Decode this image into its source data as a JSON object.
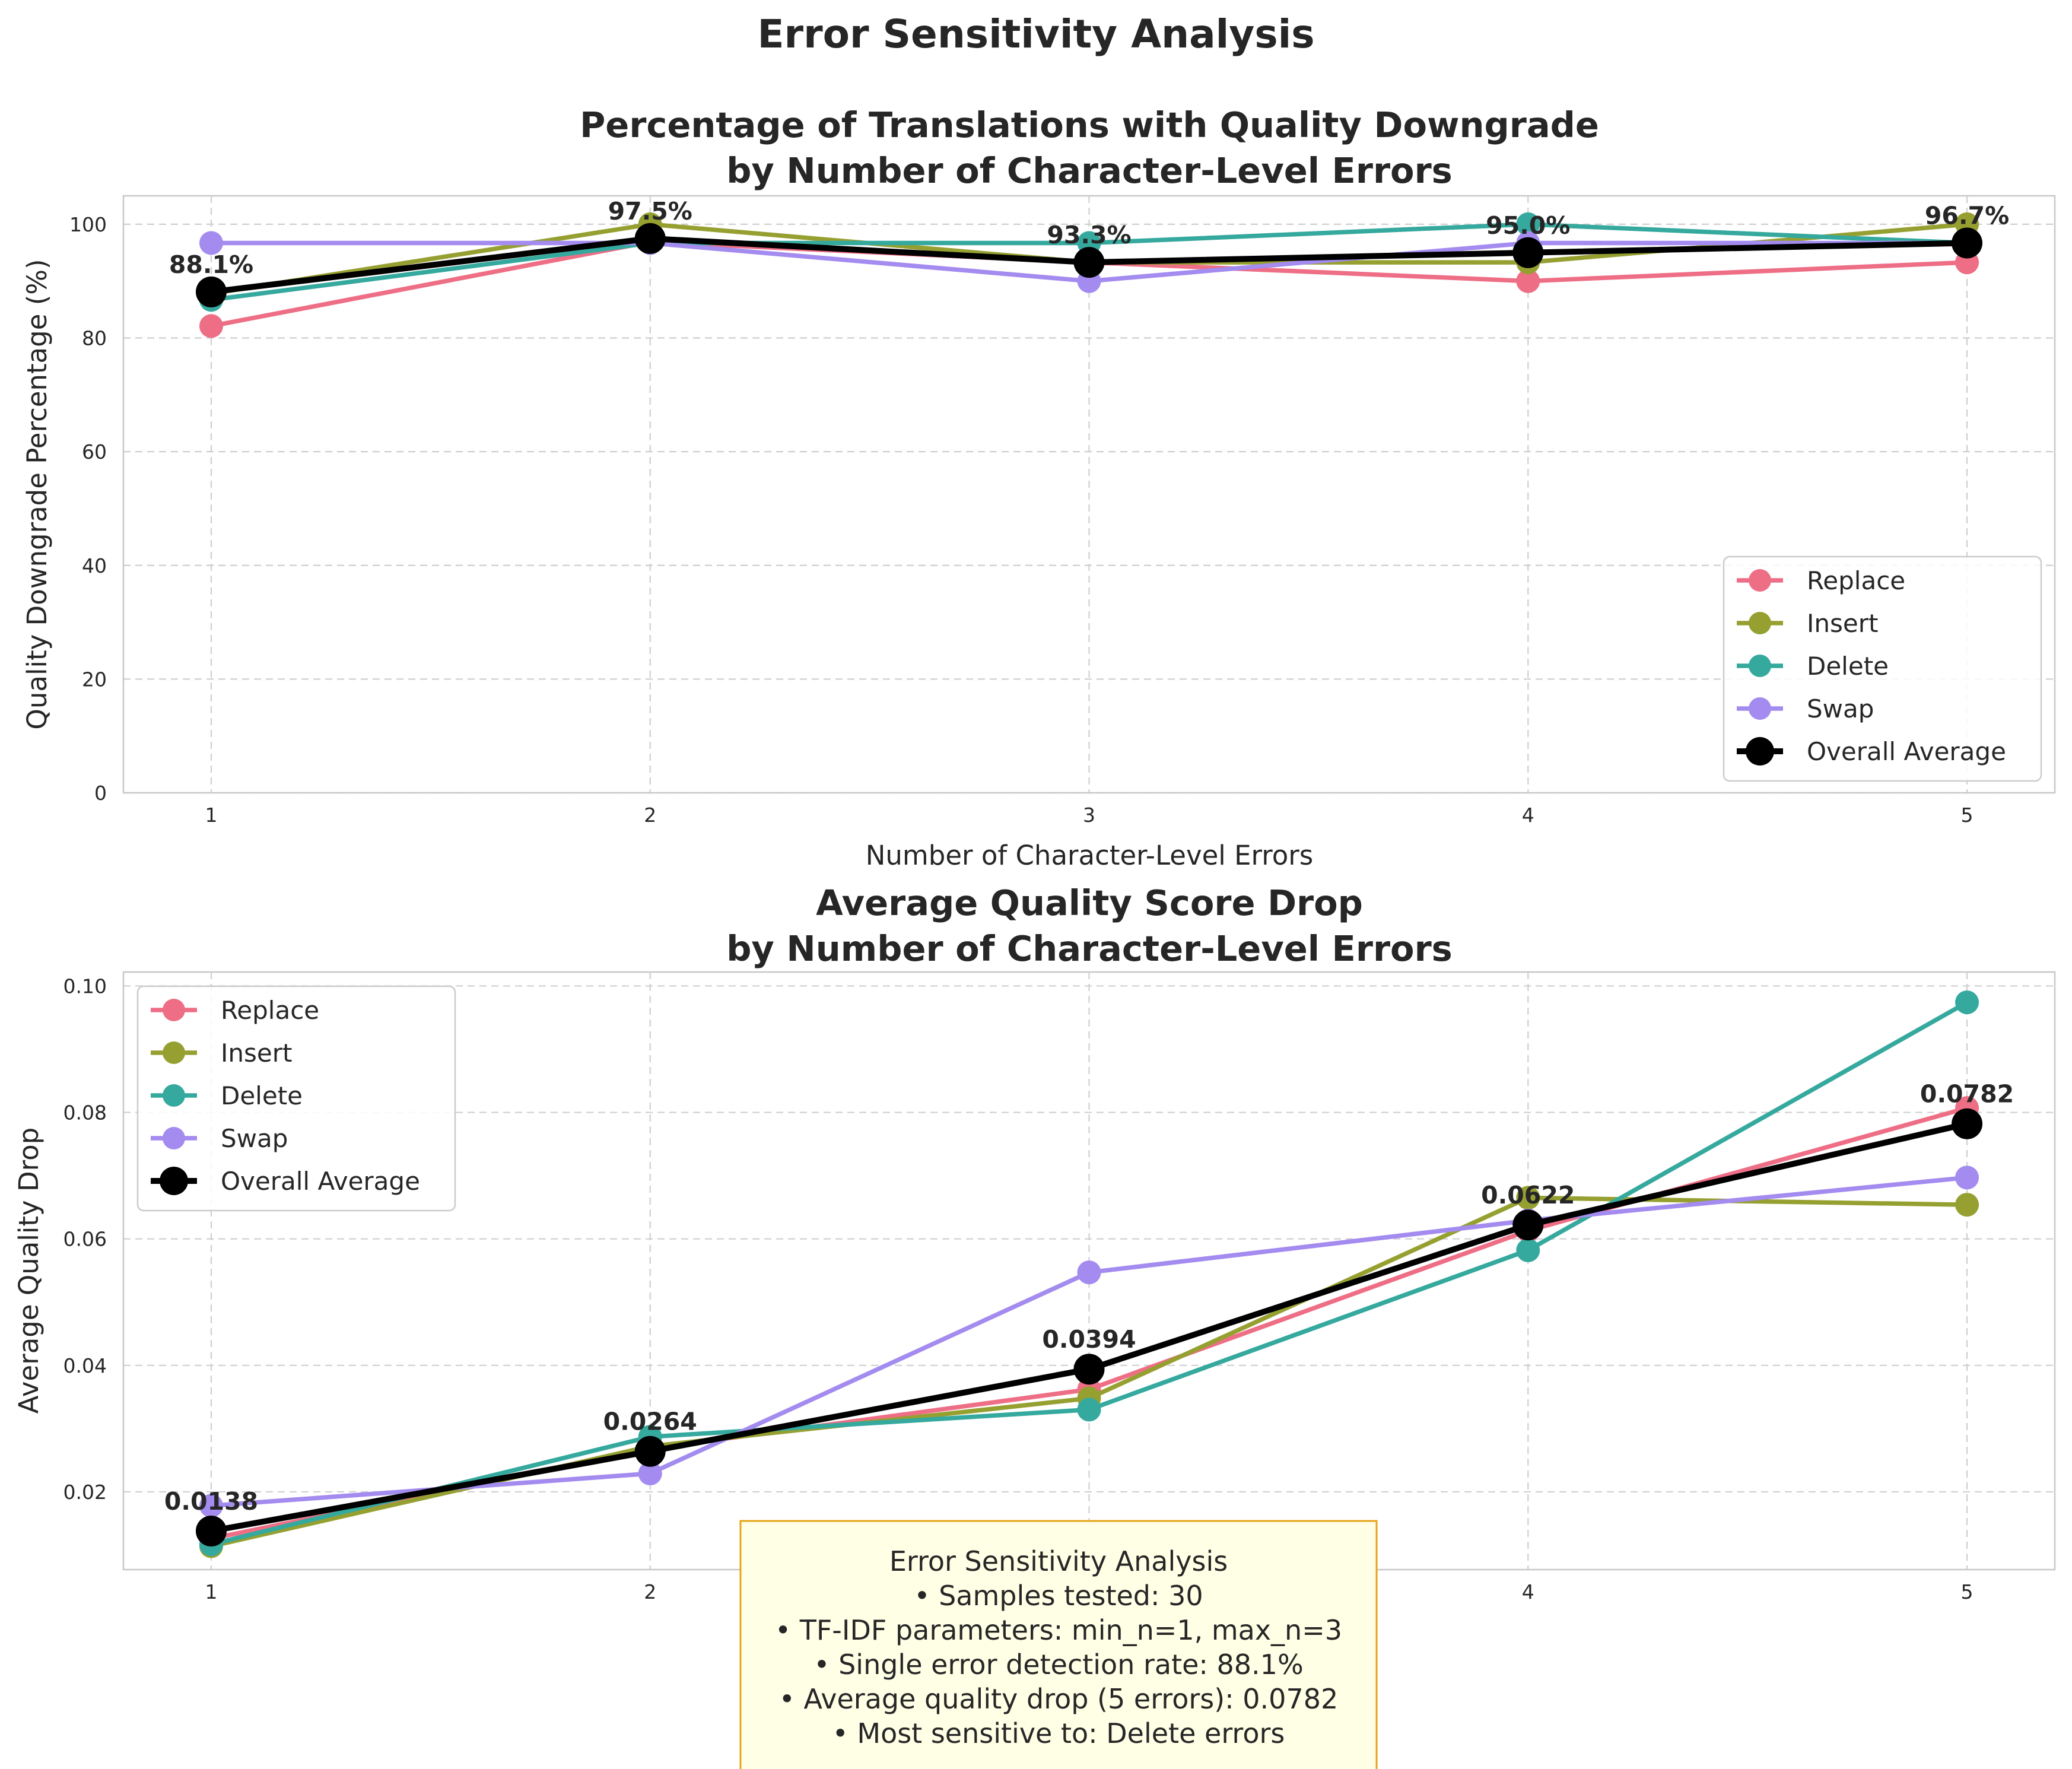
{
  "figure_title": "Error Sensitivity Analysis",
  "colors": {
    "Replace": "#ee6e85",
    "Insert": "#96a031",
    "Delete": "#35a99e",
    "Swap": "#a38bef",
    "Overall Average": "#000000"
  },
  "chart_data": [
    {
      "type": "line",
      "title_lines": [
        "Percentage of Translations with Quality Downgrade",
        "by Number of Character-Level Errors"
      ],
      "xlabel": "Number of Character-Level Errors",
      "ylabel": "Quality Downgrade Percentage (%)",
      "x": [
        1,
        2,
        3,
        4,
        5
      ],
      "xlim": [
        0.8,
        5.2
      ],
      "ylim": [
        0,
        105
      ],
      "yticks": [
        0,
        20,
        40,
        60,
        80,
        100
      ],
      "ytick_labels": [
        "0",
        "20",
        "40",
        "60",
        "80",
        "100"
      ],
      "grid": true,
      "legend_position": "lower-right",
      "series": [
        {
          "name": "Replace",
          "values": [
            82.1,
            96.9,
            93.3,
            90.0,
            93.3
          ]
        },
        {
          "name": "Insert",
          "values": [
            87.8,
            100.0,
            93.3,
            93.3,
            100.0
          ]
        },
        {
          "name": "Delete",
          "values": [
            86.7,
            96.7,
            96.7,
            100.0,
            96.7
          ]
        },
        {
          "name": "Swap",
          "values": [
            96.7,
            96.7,
            90.0,
            96.7,
            96.7
          ]
        },
        {
          "name": "Overall Average",
          "values": [
            88.1,
            97.5,
            93.3,
            95.0,
            96.7
          ]
        }
      ],
      "annotations": [
        "88.1%",
        "97.5%",
        "93.3%",
        "95.0%",
        "96.7%"
      ]
    },
    {
      "type": "line",
      "title_lines": [
        "Average Quality Score Drop",
        "by Number of Character-Level Errors"
      ],
      "xlabel": "Number of Character-Level Errors",
      "ylabel": "Average Quality Drop",
      "x": [
        1,
        2,
        3,
        4,
        5
      ],
      "xlim": [
        0.8,
        5.2
      ],
      "ylim": [
        0.0077,
        0.1022
      ],
      "yticks": [
        0.02,
        0.04,
        0.06,
        0.08,
        0.1
      ],
      "ytick_labels": [
        "0.02",
        "0.04",
        "0.06",
        "0.08",
        "0.10"
      ],
      "grid": true,
      "legend_position": "upper-left",
      "series": [
        {
          "name": "Replace",
          "values": [
            0.0126,
            0.0268,
            0.0362,
            0.0613,
            0.0807
          ]
        },
        {
          "name": "Insert",
          "values": [
            0.0114,
            0.0272,
            0.0348,
            0.0665,
            0.0654
          ]
        },
        {
          "name": "Delete",
          "values": [
            0.0117,
            0.0287,
            0.033,
            0.0582,
            0.0974
          ]
        },
        {
          "name": "Swap",
          "values": [
            0.0178,
            0.0229,
            0.0547,
            0.0629,
            0.0697
          ]
        },
        {
          "name": "Overall Average",
          "values": [
            0.0138,
            0.0264,
            0.0394,
            0.0622,
            0.0782
          ]
        }
      ],
      "annotations": [
        "0.0138",
        "0.0264",
        "0.0394",
        "0.0622",
        "0.0782"
      ]
    }
  ],
  "info_box": {
    "lines": [
      "Error Sensitivity Analysis",
      "• Samples tested: 30",
      "• TF-IDF parameters: min_n=1, max_n=3",
      "• Single error detection rate: 88.1%",
      "• Average quality drop (5 errors): 0.0782",
      "• Most sensitive to: Delete errors"
    ]
  }
}
